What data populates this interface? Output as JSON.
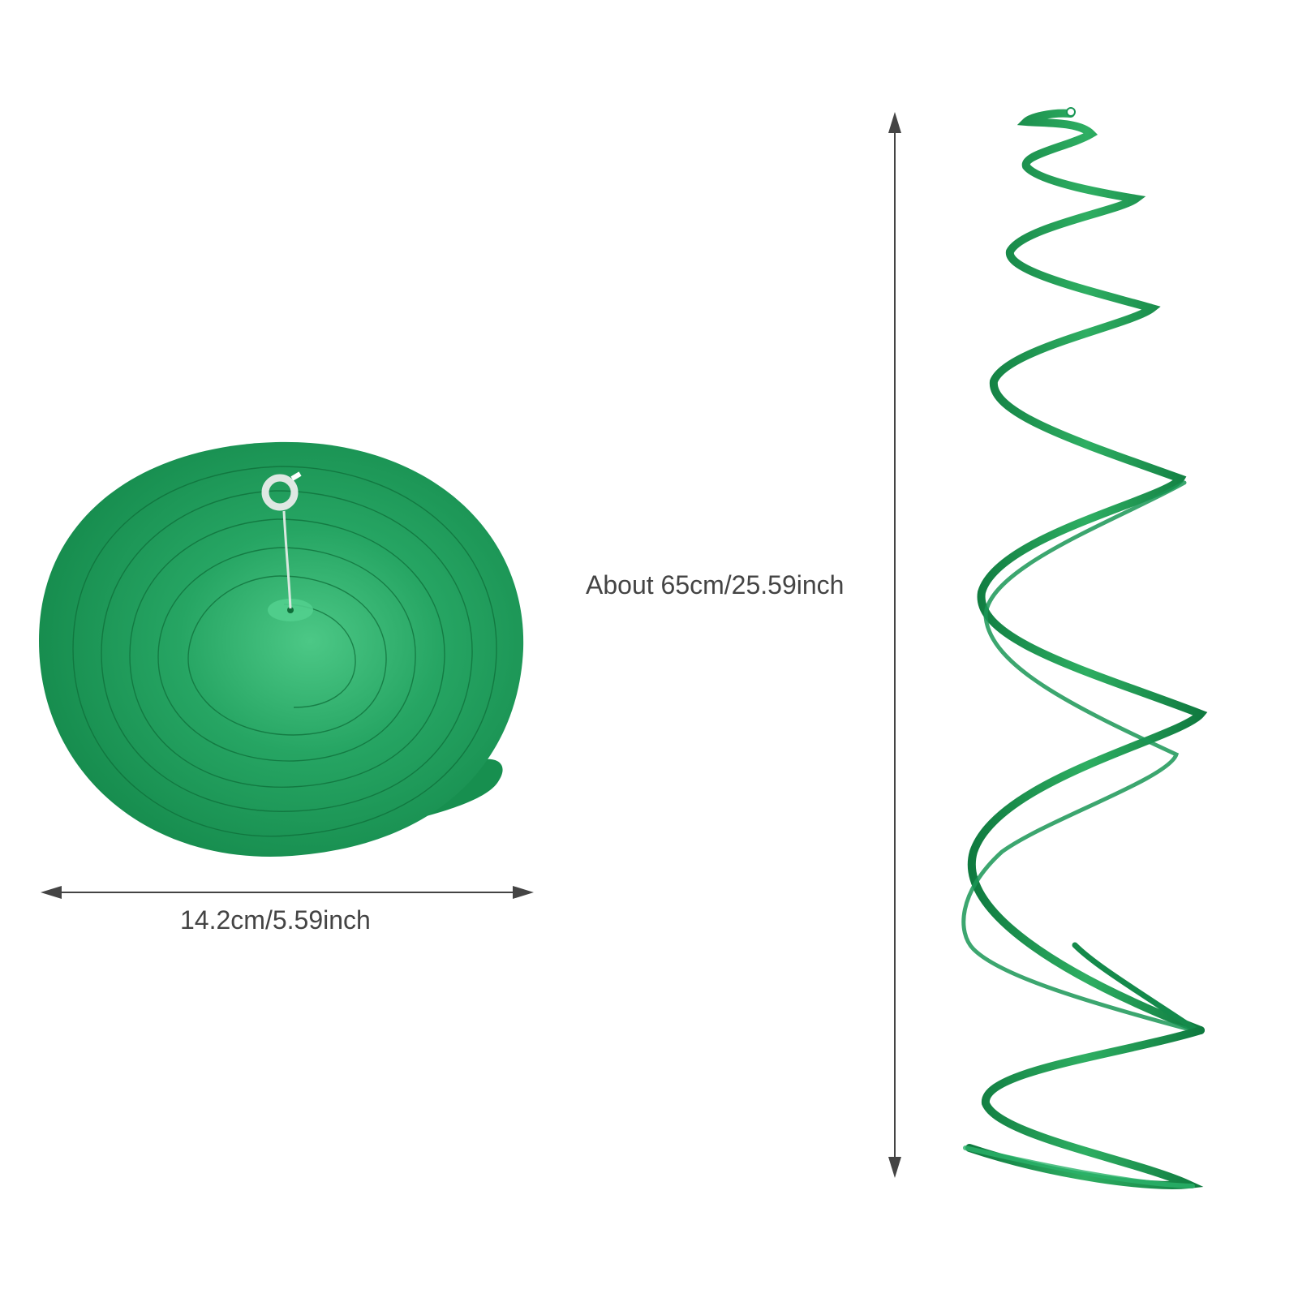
{
  "product": {
    "color": "#1a9656",
    "color_light": "#3fbf78",
    "color_dark": "#117a43"
  },
  "dimensions": {
    "width_label": "14.2cm/5.59inch",
    "height_label": "About  65cm/25.59inch",
    "arrow_color": "#444444"
  }
}
